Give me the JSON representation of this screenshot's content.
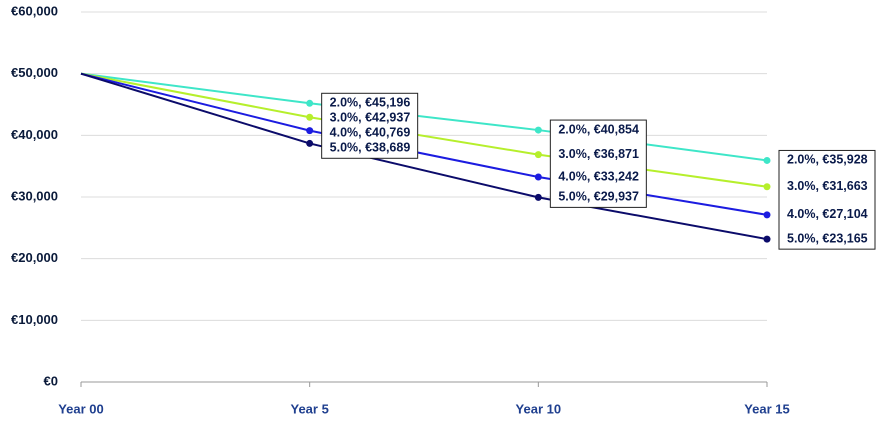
{
  "chart_data": {
    "type": "line",
    "categories": [
      "Year 00",
      "Year 5",
      "Year 10",
      "Year 15"
    ],
    "series": [
      {
        "color": "#3ee6c8",
        "values": [
          50000,
          45196,
          40854,
          35928
        ],
        "value_labels": [
          null,
          "2.0%, €45,196",
          "2.0%, €40,854",
          "2.0%, €35,928"
        ]
      },
      {
        "color": "#b6ef2c",
        "values": [
          50000,
          42937,
          36871,
          31663
        ],
        "value_labels": [
          null,
          "3.0%, €42,937",
          "3.0%, €36,871",
          "3.0%, €31,663"
        ]
      },
      {
        "color": "#1c1ce0",
        "values": [
          50000,
          40769,
          33242,
          27104
        ],
        "value_labels": [
          null,
          "4.0%, €40,769",
          "4.0%, €33,242",
          "4.0%, €27,104"
        ]
      },
      {
        "color": "#0b0b6a",
        "values": [
          50000,
          38689,
          29937,
          23165
        ],
        "value_labels": [
          null,
          "5.0%, €38,689",
          "5.0%, €29,937",
          "5.0%, €23,165"
        ]
      }
    ],
    "ylim": [
      0,
      60000
    ],
    "yticks": [
      {
        "value": 0,
        "label": "€0"
      },
      {
        "value": 10000,
        "label": "€10,000"
      },
      {
        "value": 20000,
        "label": "€20,000"
      },
      {
        "value": 30000,
        "label": "€30,000"
      },
      {
        "value": 40000,
        "label": "€40,000"
      },
      {
        "value": 50000,
        "label": "€50,000"
      },
      {
        "value": 60000,
        "label": "€60,000"
      }
    ],
    "grid": true
  }
}
